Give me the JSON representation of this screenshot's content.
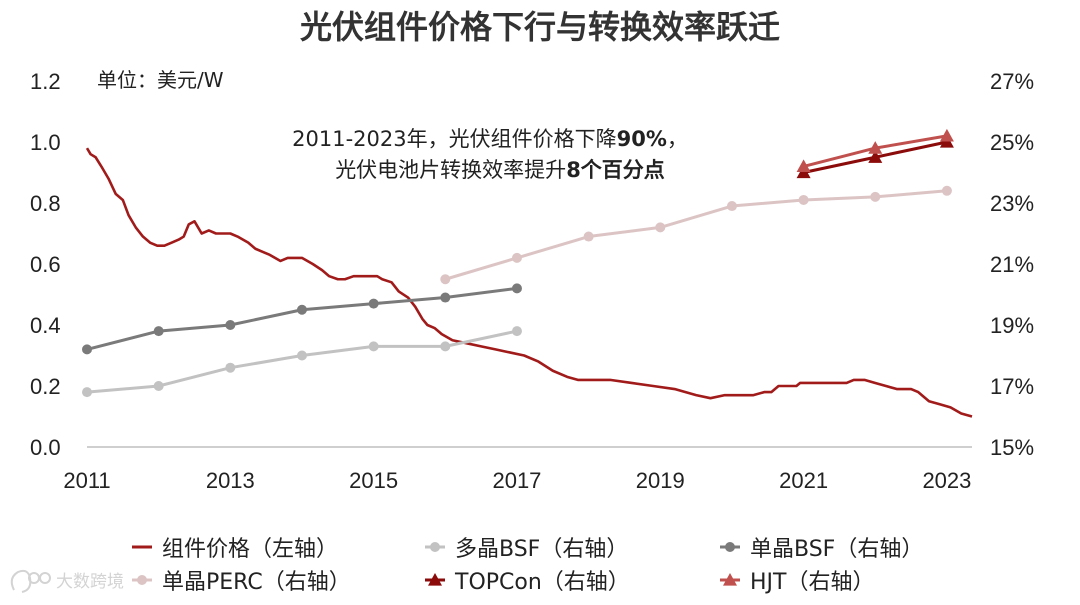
{
  "chart_data": {
    "type": "line",
    "title": "光伏组件价格下行与转换效率跃迁",
    "unit_label": "单位：美元/W",
    "annotation": {
      "line1_prefix": "2011-2023年，光伏组件价格下降",
      "line1_bold": "90%",
      "line1_suffix": "，",
      "line2_prefix": "光伏电池片转换效率提升",
      "line2_bold": "8个百分点"
    },
    "x_range": [
      2011,
      2023.35
    ],
    "x_ticks": [
      "2011",
      "2013",
      "2015",
      "2017",
      "2019",
      "2021",
      "2023"
    ],
    "left_axis": {
      "range": [
        0,
        1.2
      ],
      "ticks": [
        "0.0",
        "0.2",
        "0.4",
        "0.6",
        "0.8",
        "1.0",
        "1.2"
      ]
    },
    "right_axis": {
      "range": [
        15,
        27
      ],
      "ticks": [
        "15%",
        "17%",
        "19%",
        "21%",
        "23%",
        "25%",
        "27%"
      ]
    },
    "series": [
      {
        "name": "组件价格",
        "legend": "组件价格（左轴）",
        "axis": "left",
        "marker": "none",
        "color": "#a11b1b",
        "points": [
          [
            2011.0,
            0.98
          ],
          [
            2011.05,
            0.96
          ],
          [
            2011.12,
            0.95
          ],
          [
            2011.2,
            0.92
          ],
          [
            2011.3,
            0.88
          ],
          [
            2011.4,
            0.83
          ],
          [
            2011.5,
            0.81
          ],
          [
            2011.58,
            0.76
          ],
          [
            2011.68,
            0.72
          ],
          [
            2011.78,
            0.69
          ],
          [
            2011.88,
            0.67
          ],
          [
            2011.98,
            0.66
          ],
          [
            2012.08,
            0.66
          ],
          [
            2012.18,
            0.67
          ],
          [
            2012.28,
            0.68
          ],
          [
            2012.35,
            0.69
          ],
          [
            2012.42,
            0.73
          ],
          [
            2012.5,
            0.74
          ],
          [
            2012.6,
            0.7
          ],
          [
            2012.7,
            0.71
          ],
          [
            2012.8,
            0.7
          ],
          [
            2012.9,
            0.7
          ],
          [
            2013.0,
            0.7
          ],
          [
            2013.1,
            0.69
          ],
          [
            2013.25,
            0.67
          ],
          [
            2013.35,
            0.65
          ],
          [
            2013.45,
            0.64
          ],
          [
            2013.55,
            0.63
          ],
          [
            2013.7,
            0.61
          ],
          [
            2013.8,
            0.62
          ],
          [
            2013.9,
            0.62
          ],
          [
            2014.0,
            0.62
          ],
          [
            2014.15,
            0.6
          ],
          [
            2014.28,
            0.58
          ],
          [
            2014.38,
            0.56
          ],
          [
            2014.5,
            0.55
          ],
          [
            2014.6,
            0.55
          ],
          [
            2014.72,
            0.56
          ],
          [
            2014.85,
            0.56
          ],
          [
            2014.95,
            0.56
          ],
          [
            2015.05,
            0.56
          ],
          [
            2015.12,
            0.55
          ],
          [
            2015.25,
            0.54
          ],
          [
            2015.35,
            0.51
          ],
          [
            2015.48,
            0.49
          ],
          [
            2015.58,
            0.46
          ],
          [
            2015.68,
            0.42
          ],
          [
            2015.75,
            0.4
          ],
          [
            2015.85,
            0.39
          ],
          [
            2015.95,
            0.37
          ],
          [
            2016.1,
            0.35
          ],
          [
            2016.3,
            0.34
          ],
          [
            2016.5,
            0.33
          ],
          [
            2016.7,
            0.32
          ],
          [
            2016.9,
            0.31
          ],
          [
            2017.1,
            0.3
          ],
          [
            2017.3,
            0.28
          ],
          [
            2017.5,
            0.25
          ],
          [
            2017.7,
            0.23
          ],
          [
            2017.85,
            0.22
          ],
          [
            2018.0,
            0.22
          ],
          [
            2018.3,
            0.22
          ],
          [
            2018.6,
            0.21
          ],
          [
            2018.9,
            0.2
          ],
          [
            2019.2,
            0.19
          ],
          [
            2019.5,
            0.17
          ],
          [
            2019.7,
            0.16
          ],
          [
            2019.9,
            0.17
          ],
          [
            2020.1,
            0.17
          ],
          [
            2020.3,
            0.17
          ],
          [
            2020.45,
            0.18
          ],
          [
            2020.55,
            0.18
          ],
          [
            2020.65,
            0.2
          ],
          [
            2020.8,
            0.2
          ],
          [
            2020.9,
            0.2
          ],
          [
            2020.95,
            0.21
          ],
          [
            2021.1,
            0.21
          ],
          [
            2021.3,
            0.21
          ],
          [
            2021.5,
            0.21
          ],
          [
            2021.6,
            0.21
          ],
          [
            2021.7,
            0.22
          ],
          [
            2021.85,
            0.22
          ],
          [
            2022.0,
            0.21
          ],
          [
            2022.15,
            0.2
          ],
          [
            2022.3,
            0.19
          ],
          [
            2022.5,
            0.19
          ],
          [
            2022.6,
            0.18
          ],
          [
            2022.75,
            0.15
          ],
          [
            2022.9,
            0.14
          ],
          [
            2023.05,
            0.13
          ],
          [
            2023.2,
            0.11
          ],
          [
            2023.35,
            0.1
          ]
        ]
      },
      {
        "name": "多晶BSF",
        "legend": "多晶BSF（右轴）",
        "axis": "right",
        "marker": "circle",
        "color": "#c2c2c2",
        "points": [
          [
            2011,
            16.8
          ],
          [
            2012,
            17.0
          ],
          [
            2013,
            17.6
          ],
          [
            2014,
            18.0
          ],
          [
            2015,
            18.3
          ],
          [
            2016,
            18.3
          ],
          [
            2017,
            18.8
          ]
        ]
      },
      {
        "name": "单晶BSF",
        "legend": "单晶BSF（右轴）",
        "axis": "right",
        "marker": "circle",
        "color": "#7a7a7a",
        "points": [
          [
            2011,
            18.2
          ],
          [
            2012,
            18.8
          ],
          [
            2013,
            19.0
          ],
          [
            2014,
            19.5
          ],
          [
            2015,
            19.7
          ],
          [
            2016,
            19.9
          ],
          [
            2017,
            20.2
          ]
        ]
      },
      {
        "name": "单晶PERC",
        "legend": "单晶PERC（右轴）",
        "axis": "right",
        "marker": "circle",
        "color": "#dcc4c4",
        "points": [
          [
            2016,
            20.5
          ],
          [
            2017,
            21.2
          ],
          [
            2018,
            21.9
          ],
          [
            2019,
            22.2
          ],
          [
            2020,
            22.9
          ],
          [
            2021,
            23.1
          ],
          [
            2022,
            23.2
          ],
          [
            2023,
            23.4
          ]
        ]
      },
      {
        "name": "TOPCon",
        "legend": "TOPCon（右轴）",
        "axis": "right",
        "marker": "triangle",
        "color": "#8b0a0a",
        "points": [
          [
            2021,
            24.0
          ],
          [
            2022,
            24.5
          ],
          [
            2023,
            25.0
          ]
        ]
      },
      {
        "name": "HJT",
        "legend": "HJT（右轴）",
        "axis": "right",
        "marker": "triangle",
        "color": "#c0504d",
        "points": [
          [
            2021,
            24.2
          ],
          [
            2022,
            24.8
          ],
          [
            2023,
            25.2
          ]
        ]
      }
    ]
  },
  "watermark": {
    "icon": "logo-icon",
    "text": "大数跨境"
  }
}
